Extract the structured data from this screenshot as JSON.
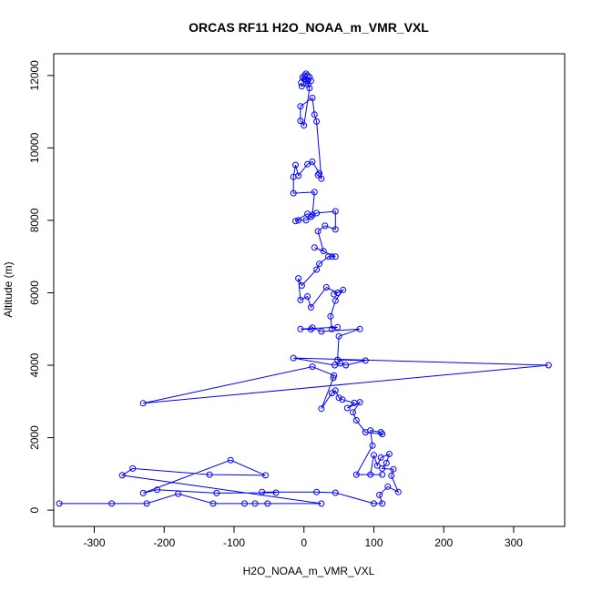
{
  "chart_data": {
    "type": "line",
    "title": "ORCAS RF11 H2O_NOAA_m_VMR_VXL",
    "xlabel": "H2O_NOAA_m_VMR_VXL",
    "ylabel": "Altitude (m)",
    "xlim": [
      -358,
      373
    ],
    "ylim": [
      -450,
      12600
    ],
    "x_ticks": [
      -300,
      -200,
      -100,
      0,
      100,
      200,
      300
    ],
    "y_ticks": [
      0,
      2000,
      4000,
      6000,
      8000,
      10000,
      12000
    ],
    "grid": false,
    "legend": "none",
    "series_color": "#0000ff",
    "markers": "open-circle",
    "series": [
      {
        "points": [
          [
            -350,
            180
          ],
          [
            -275,
            180
          ],
          [
            -225,
            180
          ],
          [
            -180,
            450
          ],
          [
            -130,
            180
          ],
          [
            -85,
            180
          ],
          [
            -70,
            180
          ],
          [
            -52,
            180
          ],
          [
            25,
            180
          ],
          [
            -260,
            960
          ],
          [
            -245,
            1150
          ],
          [
            -135,
            980
          ],
          [
            -55,
            960
          ],
          [
            -105,
            1380
          ],
          [
            -230,
            470
          ],
          [
            -210,
            560
          ],
          [
            -125,
            470
          ],
          [
            -40,
            480
          ],
          [
            -60,
            500
          ],
          [
            18,
            500
          ],
          [
            45,
            480
          ],
          [
            100,
            180
          ],
          [
            112,
            180
          ],
          [
            108,
            420
          ],
          [
            120,
            650
          ],
          [
            135,
            500
          ],
          [
            125,
            950
          ],
          [
            128,
            1130
          ],
          [
            112,
            1150
          ],
          [
            118,
            1300
          ],
          [
            122,
            1550
          ],
          [
            110,
            1450
          ],
          [
            105,
            1230
          ],
          [
            100,
            1520
          ],
          [
            95,
            980
          ],
          [
            112,
            980
          ],
          [
            75,
            980
          ],
          [
            98,
            1780
          ],
          [
            95,
            2200
          ],
          [
            110,
            2150
          ],
          [
            112,
            2100
          ],
          [
            88,
            2150
          ],
          [
            75,
            2480
          ],
          [
            70,
            2700
          ],
          [
            80,
            2980
          ],
          [
            62,
            2820
          ],
          [
            72,
            2960
          ],
          [
            55,
            3050
          ],
          [
            50,
            3100
          ],
          [
            45,
            3300
          ],
          [
            40,
            3230
          ],
          [
            25,
            2800
          ],
          [
            42,
            3650
          ],
          [
            43,
            3720
          ],
          [
            12,
            3960
          ],
          [
            -230,
            2950
          ],
          [
            350,
            4000
          ],
          [
            -15,
            4200
          ],
          [
            44,
            4000
          ],
          [
            52,
            4050
          ],
          [
            60,
            4000
          ],
          [
            88,
            4130
          ],
          [
            48,
            4150
          ],
          [
            50,
            4800
          ],
          [
            80,
            5000
          ],
          [
            25,
            4930
          ],
          [
            12,
            5040
          ],
          [
            10,
            4990
          ],
          [
            -5,
            5000
          ],
          [
            48,
            5050
          ],
          [
            40,
            5000
          ],
          [
            38,
            5350
          ],
          [
            45,
            5780
          ],
          [
            56,
            6080
          ],
          [
            43,
            5960
          ],
          [
            48,
            6000
          ],
          [
            32,
            6150
          ],
          [
            10,
            5600
          ],
          [
            5,
            5900
          ],
          [
            -5,
            5800
          ],
          [
            -8,
            6400
          ],
          [
            -3,
            6200
          ],
          [
            18,
            6640
          ],
          [
            22,
            6800
          ],
          [
            35,
            7000
          ],
          [
            40,
            7000
          ],
          [
            45,
            7000
          ],
          [
            15,
            7250
          ],
          [
            28,
            7150
          ],
          [
            20,
            7700
          ],
          [
            30,
            7850
          ],
          [
            45,
            7750
          ],
          [
            45,
            8250
          ],
          [
            18,
            8200
          ],
          [
            10,
            8100
          ],
          [
            3,
            8000
          ],
          [
            -8,
            8000
          ],
          [
            -12,
            7980
          ],
          [
            5,
            8180
          ],
          [
            12,
            8150
          ],
          [
            15,
            8780
          ],
          [
            -15,
            8750
          ],
          [
            -15,
            9200
          ],
          [
            -12,
            9530
          ],
          [
            -8,
            9230
          ],
          [
            5,
            9550
          ],
          [
            12,
            9620
          ],
          [
            22,
            9300
          ],
          [
            20,
            9250
          ],
          [
            25,
            9150
          ],
          [
            18,
            10730
          ],
          [
            15,
            10920
          ],
          [
            12,
            11380
          ],
          [
            -5,
            11150
          ],
          [
            -5,
            10750
          ],
          [
            0,
            10620
          ],
          [
            8,
            11650
          ],
          [
            4,
            11850
          ],
          [
            0,
            11900
          ],
          [
            -2,
            11950
          ],
          [
            1,
            12000
          ],
          [
            3,
            12050
          ],
          [
            5,
            12000
          ],
          [
            2,
            11900
          ],
          [
            8,
            11950
          ],
          [
            10,
            11850
          ],
          [
            6,
            11750
          ],
          [
            -3,
            11700
          ],
          [
            -4,
            11800
          ]
        ]
      }
    ]
  }
}
